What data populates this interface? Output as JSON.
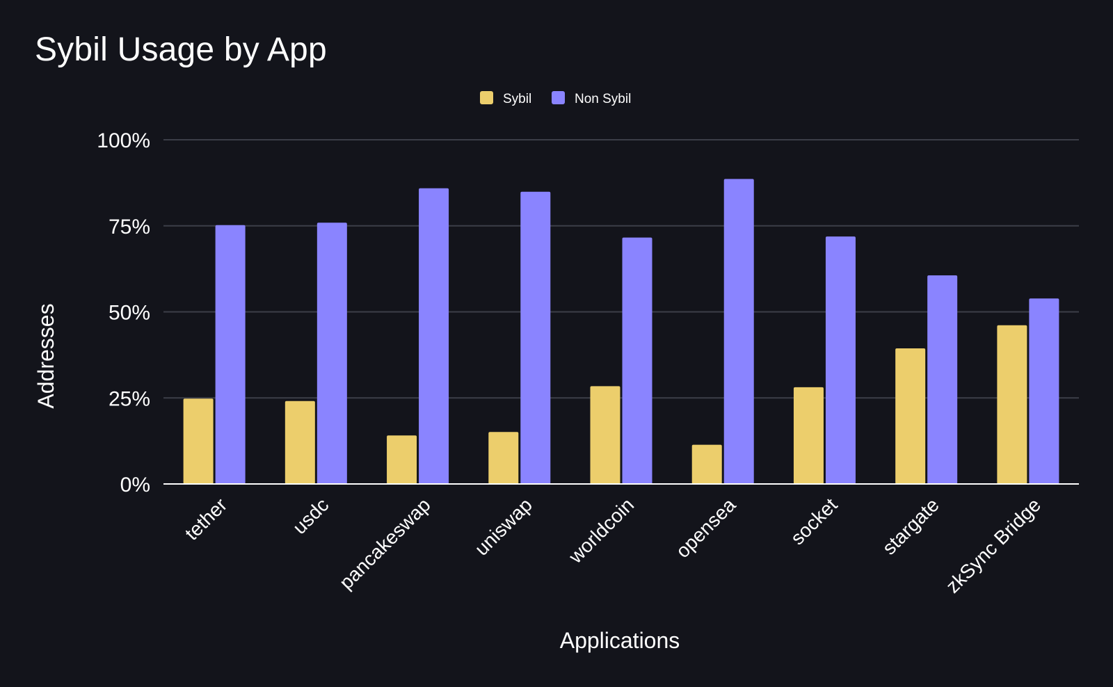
{
  "chart_data": {
    "type": "bar",
    "title": "Sybil Usage by App",
    "xlabel": "Applications",
    "ylabel": "Addresses",
    "ylim": [
      0,
      100
    ],
    "yticks": [
      "0%",
      "25%",
      "50%",
      "75%",
      "100%"
    ],
    "ytick_values": [
      0,
      25,
      50,
      75,
      100
    ],
    "grid": true,
    "legend_position": "top-center",
    "categories": [
      "tether",
      "usdc",
      "pancakeswap",
      "uniswap",
      "worldcoin",
      "opensea",
      "socket",
      "stargate",
      "zkSync Bridge"
    ],
    "series": [
      {
        "name": "Sybil",
        "color": "#ecce6c",
        "values": [
          24.8,
          24.1,
          14.1,
          15.1,
          28.4,
          11.4,
          28.1,
          39.4,
          46.1
        ]
      },
      {
        "name": "Non Sybil",
        "color": "#8a84ff",
        "values": [
          75.2,
          75.9,
          85.9,
          84.9,
          71.6,
          88.6,
          71.9,
          60.6,
          53.9
        ]
      }
    ]
  }
}
